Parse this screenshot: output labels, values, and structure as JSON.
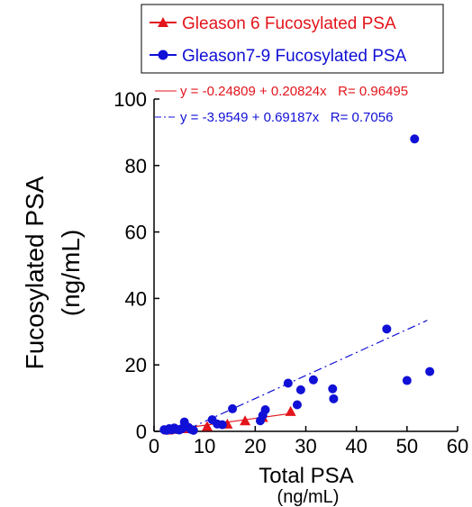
{
  "chart_data": {
    "type": "scatter",
    "xlabel": "Total PSA",
    "xlabel_unit": "(ng/mL)",
    "ylabel": "Fucosylated PSA",
    "ylabel_unit": "(ng/mL)",
    "xlim": [
      0,
      60
    ],
    "ylim": [
      0,
      100
    ],
    "x_ticks": [
      0,
      10,
      20,
      30,
      40,
      50,
      60
    ],
    "y_ticks": [
      0,
      20,
      40,
      60,
      80,
      100
    ],
    "grid": false,
    "legend": {
      "placement": "top",
      "entries": [
        "Gleason 6 Fucosylated PSA",
        "Gleason7-9 Fucosylated PSA"
      ]
    },
    "series": [
      {
        "name": "Gleason 6 Fucosylated PSA",
        "color": "#e3141b",
        "marker": "triangle",
        "points": [
          [
            2.8,
            0.4
          ],
          [
            4.0,
            0.6
          ],
          [
            6.5,
            0.8
          ],
          [
            10.5,
            1.5
          ],
          [
            14.5,
            2.2
          ],
          [
            18.0,
            3.2
          ],
          [
            21.5,
            4.2
          ],
          [
            27.0,
            6.0
          ]
        ],
        "fit": {
          "intercept": -0.24809,
          "slope": 0.20824,
          "x_range": [
            2,
            27
          ],
          "style": "solid"
        }
      },
      {
        "name": "Gleason7-9 Fucosylated PSA",
        "color": "#1010d6",
        "marker": "circle",
        "points": [
          [
            2.0,
            0.5
          ],
          [
            2.5,
            0.3
          ],
          [
            3.0,
            0.8
          ],
          [
            3.5,
            0.5
          ],
          [
            4.0,
            1.0
          ],
          [
            4.5,
            0.6
          ],
          [
            5.0,
            0.4
          ],
          [
            5.5,
            0.8
          ],
          [
            6.0,
            2.8
          ],
          [
            6.3,
            1.5
          ],
          [
            6.8,
            1.2
          ],
          [
            7.3,
            0.6
          ],
          [
            7.8,
            0.3
          ],
          [
            11.5,
            3.5
          ],
          [
            12.5,
            2.2
          ],
          [
            13.5,
            2.0
          ],
          [
            15.5,
            6.8
          ],
          [
            21.0,
            3.2
          ],
          [
            21.5,
            4.8
          ],
          [
            22.0,
            6.5
          ],
          [
            26.5,
            14.5
          ],
          [
            28.3,
            8.0
          ],
          [
            29.0,
            12.5
          ],
          [
            31.5,
            15.5
          ],
          [
            35.3,
            12.8
          ],
          [
            35.5,
            9.8
          ],
          [
            46.0,
            30.8
          ],
          [
            50.0,
            15.3
          ],
          [
            51.5,
            88.0
          ],
          [
            54.5,
            18.0
          ]
        ],
        "fit": {
          "intercept": -3.9549,
          "slope": 0.69187,
          "x_range": [
            7,
            54
          ],
          "style": "dash-dot"
        }
      }
    ],
    "annotations": [
      {
        "series": 0,
        "text": "y = -0.24809 + 0.20824x   R= 0.96495"
      },
      {
        "series": 1,
        "text": "y = -3.9549 + 0.69187x   R= 0.7056"
      }
    ]
  }
}
